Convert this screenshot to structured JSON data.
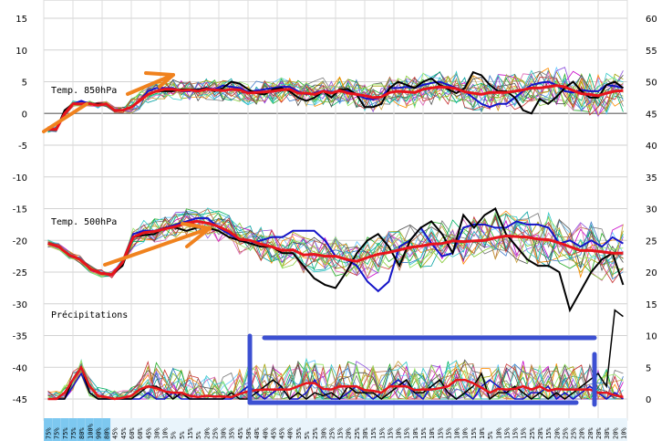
{
  "chart_data": {
    "type": "line",
    "panel_labels": {
      "t850": "Temp. 850hPa",
      "t500": "Temp. 500hPa",
      "precip": "Précipitations"
    },
    "left_axis": {
      "ticks": [
        15,
        10,
        5,
        0,
        -5,
        -10,
        -15,
        -20,
        -25,
        -30,
        -35,
        -40,
        -45
      ],
      "ylim": [
        -45,
        15
      ]
    },
    "right_axis": {
      "ticks": [
        60,
        55,
        50,
        45,
        40,
        35,
        30,
        25,
        20,
        15,
        10,
        5,
        0
      ],
      "ylim": [
        0,
        60
      ]
    },
    "x_count": 70,
    "precip_probability_labels": [
      "75%",
      "75%",
      "75%",
      "75%",
      "80%",
      "100%",
      "90%",
      "80%",
      "45%",
      "45%",
      "60%",
      "60%",
      "45%",
      "30%",
      "10%",
      "5%",
      "5%",
      "15%",
      "5%",
      "20%",
      "25%",
      "30%",
      "35%",
      "45%",
      "50%",
      "40%",
      "40%",
      "45%",
      "45%",
      "40%",
      "35%",
      "5%",
      "25%",
      "30%",
      "25%",
      "15%",
      "20%",
      "25%",
      "30%",
      "15%",
      "15%",
      "15%",
      "10%",
      "15%",
      "10%",
      "15%",
      "10%",
      "15%",
      "15%",
      "10%",
      "10%",
      "15%",
      "10%",
      "5%",
      "10%",
      "15%",
      "15%",
      "15%",
      "25%",
      "20%",
      "15%",
      "20%",
      "25%",
      "25%",
      "20%",
      "20%",
      "20%",
      "30%",
      "20%",
      "10%"
    ],
    "series": [
      {
        "role": "mean",
        "color": "#e8141c",
        "t850": [
          -2.5,
          -2.5,
          0,
          1.5,
          1.5,
          1.5,
          1.3,
          1.5,
          0.5,
          0.5,
          1,
          2,
          3,
          3.5,
          3.8,
          3.8,
          3.6,
          3.7,
          3.5,
          3.8,
          3.7,
          3.6,
          3.8,
          3.7,
          3.2,
          3.3,
          3.4,
          3.5,
          3.7,
          3.8,
          3.2,
          3.2,
          3,
          3.5,
          3.2,
          3.6,
          3.2,
          3,
          2.8,
          2.5,
          2.6,
          3.3,
          3.5,
          3.4,
          3.3,
          3.8,
          4,
          4.2,
          4.1,
          3.9,
          3.4,
          3.2,
          3,
          3.3,
          3.3,
          3.3,
          3.5,
          3.7,
          4,
          4,
          4.2,
          4.4,
          4.2,
          3.6,
          3.1,
          3,
          2.8,
          3.2,
          3.5,
          3.6
        ],
        "t500": [
          -20.5,
          -21,
          -22.3,
          -23,
          -24.5,
          -25.2,
          -25.4,
          -23.5,
          -19.5,
          -18.8,
          -18.6,
          -18.2,
          -17.8,
          -17.3,
          -17.0,
          -17.3,
          -17.8,
          -18.6,
          -19.8,
          -20,
          -20.6,
          -21,
          -21.6,
          -21.5,
          -22.3,
          -22.2,
          -22.5,
          -22.5,
          -23,
          -23.3,
          -22.7,
          -22.2,
          -21.9,
          -21.5,
          -21.1,
          -20.9,
          -20.6,
          -20.5,
          -20.1,
          -20.2,
          -20.1,
          -20,
          -19.6,
          -19.3,
          -19.4,
          -19.5,
          -19.8,
          -19.9,
          -20.4,
          -21,
          -21.6,
          -21.6,
          -21.8,
          -22,
          -22
        ],
        "precip": [
          0,
          0,
          1,
          3,
          5,
          2,
          0.5,
          0.3,
          0,
          0.2,
          0.5,
          1.5,
          2,
          1.7,
          1.2,
          1,
          1,
          0.5,
          0.3,
          0.5,
          0.4,
          0.4,
          0.3,
          0.8,
          1.2,
          1.4,
          1.5,
          1.5,
          1.5,
          1.5,
          2,
          2.5,
          2.5,
          1.6,
          1.5,
          2,
          2,
          2,
          1.4,
          1.3,
          1,
          2,
          2,
          2,
          1.4,
          1.5,
          1.5,
          1.7,
          2,
          3,
          3,
          2.5,
          1.8,
          1,
          1.6,
          1.5,
          1.6,
          2,
          1.5,
          2,
          1.3,
          1.6,
          1.5,
          1.5,
          1.5,
          1.5,
          1,
          1,
          0.6,
          0.3
        ]
      },
      {
        "role": "control",
        "color": "#000000",
        "t850": [
          -2.5,
          -2.5,
          0.5,
          1.5,
          1.5,
          1.5,
          1.5,
          1.5,
          0.5,
          0.5,
          1,
          2,
          3,
          3.5,
          3.5,
          3.5,
          3.8,
          3.8,
          3.7,
          4,
          3.5,
          4,
          5,
          4.7,
          3.8,
          3.2,
          3,
          3.8,
          4,
          3.5,
          2.5,
          2,
          2.5,
          3.5,
          2.5,
          3.8,
          3.8,
          3,
          1,
          1,
          1.5,
          4,
          5,
          4.5,
          4,
          5,
          5.5,
          4.5,
          3.8,
          3.2,
          4,
          6.5,
          6,
          4.5,
          3.5,
          3.5,
          2.5,
          0.5,
          0,
          2.3,
          1.5,
          2.6,
          4,
          5,
          3.5,
          2.5,
          2.5,
          4.5,
          5,
          4
        ],
        "t500": [
          -20.5,
          -21,
          -22.3,
          -23,
          -24.5,
          -25.2,
          -25.4,
          -24,
          -19.5,
          -19.2,
          -19,
          -18,
          -18,
          -18.5,
          -18,
          -18,
          -18.5,
          -19.5,
          -20,
          -20.5,
          -21,
          -21,
          -22,
          -22,
          -24,
          -26,
          -27,
          -27.5,
          -25,
          -22,
          -20,
          -19,
          -21,
          -24,
          -20,
          -18,
          -17,
          -19,
          -22,
          -16,
          -18,
          -16,
          -15,
          -19,
          -21,
          -23,
          -24,
          -24,
          -25,
          -31,
          -28,
          -25,
          -23,
          -22,
          -27
        ],
        "precip": [
          0,
          0,
          0,
          3,
          5,
          1,
          0,
          0,
          0,
          0,
          0,
          1,
          2,
          2,
          1.2,
          0,
          1,
          0,
          0,
          0,
          0,
          0,
          1,
          0,
          0,
          1,
          2,
          3,
          2,
          0,
          1,
          0,
          1,
          0.5,
          1,
          0,
          2,
          1,
          1,
          1,
          0,
          1,
          2,
          3,
          1,
          1,
          2,
          3,
          1,
          0,
          1,
          2,
          4,
          0,
          1,
          1,
          2,
          1,
          0,
          1,
          0,
          1,
          0,
          1,
          2,
          3,
          4,
          2,
          14,
          13
        ]
      },
      {
        "role": "deterministic",
        "color": "#1414c8",
        "t850": [
          -2.5,
          -2.5,
          0,
          1.5,
          2,
          1.5,
          1.5,
          1.5,
          0.5,
          0.5,
          1,
          2,
          3.5,
          4,
          4,
          4,
          3.5,
          3.5,
          3.8,
          4,
          3.8,
          4.4,
          4.2,
          4,
          3.4,
          3.6,
          3.8,
          4,
          4.2,
          4.2,
          3.5,
          3,
          3.2,
          3.6,
          3.4,
          3.5,
          3.5,
          3,
          2.4,
          2.2,
          2.6,
          4,
          4,
          4.2,
          4,
          4.5,
          4.8,
          5,
          4.5,
          4,
          3.5,
          2.5,
          1.5,
          1,
          1.5,
          1.5,
          2.5,
          3.5,
          4.5,
          4.8,
          5,
          4.5,
          3.5,
          3.3,
          3.7,
          3.5,
          3.5,
          4.5,
          4.3,
          4
        ],
        "t500": [
          -20.5,
          -21,
          -22.3,
          -23,
          -24.5,
          -25.2,
          -25.4,
          -23.5,
          -19,
          -18.5,
          -18.5,
          -18,
          -17.5,
          -17,
          -16.5,
          -16.5,
          -18,
          -19,
          -20,
          -20.5,
          -20,
          -19.5,
          -19.5,
          -18.5,
          -18.5,
          -18.5,
          -20,
          -22.5,
          -23,
          -24,
          -26.5,
          -28,
          -26.5,
          -21,
          -20,
          -18,
          -20.5,
          -22.5,
          -22,
          -18,
          -17.5,
          -17.5,
          -18,
          -18,
          -17,
          -17.5,
          -17.5,
          -18,
          -20.5,
          -20,
          -21,
          -20,
          -21,
          -19.5,
          -20.5
        ],
        "precip": [
          0,
          0,
          0,
          2,
          4,
          1,
          0,
          0,
          0,
          0,
          0,
          0,
          1,
          0,
          0,
          1,
          0,
          0,
          0,
          0,
          0,
          0,
          0,
          1,
          2,
          1,
          0,
          1,
          2,
          0,
          0,
          1,
          3,
          1,
          0,
          0,
          1,
          2,
          1,
          0,
          1,
          2,
          3,
          2,
          1,
          0,
          2,
          3,
          1,
          0,
          1,
          0,
          2,
          3,
          2,
          1,
          0,
          0,
          1,
          1,
          2,
          0,
          1,
          0,
          1,
          2,
          1,
          0,
          1,
          0
        ]
      }
    ],
    "members": [
      {
        "color": "#22aa22"
      },
      {
        "color": "#00a0a0"
      },
      {
        "color": "#c800c8"
      },
      {
        "color": "#a0a000"
      },
      {
        "color": "#64c8ff"
      },
      {
        "color": "#ff8c00"
      },
      {
        "color": "#787878"
      },
      {
        "color": "#8c50dc"
      },
      {
        "color": "#00b464"
      },
      {
        "color": "#b4643c"
      },
      {
        "color": "#dc64b4"
      },
      {
        "color": "#82c832"
      },
      {
        "color": "#3c78c8"
      },
      {
        "color": "#c8a03c"
      },
      {
        "color": "#505050"
      },
      {
        "color": "#32c8c8"
      },
      {
        "color": "#c83232"
      },
      {
        "color": "#96e664"
      }
    ],
    "annotation_colors": {
      "arrows": "#f0821e",
      "box": "#3c50d2"
    }
  }
}
